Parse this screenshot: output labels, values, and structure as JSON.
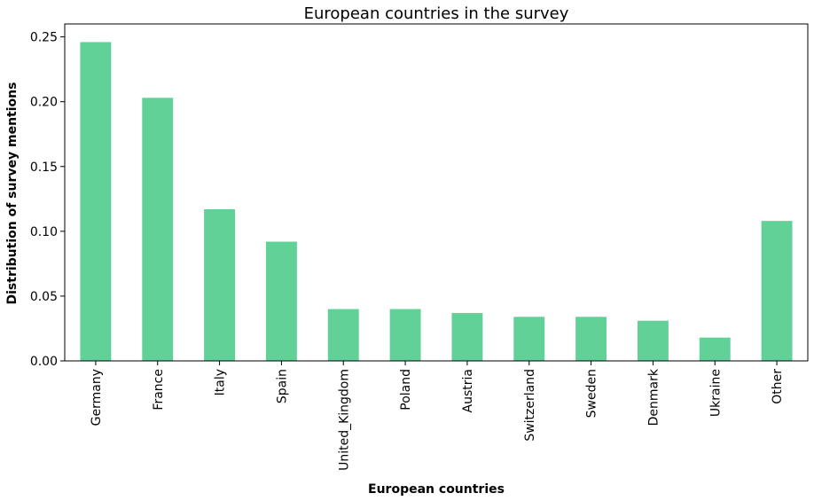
{
  "chart_data": {
    "type": "bar",
    "title": "European countries in the survey",
    "xlabel": "European countries",
    "ylabel": "Distribution of survey mentions",
    "categories": [
      "Germany",
      "France",
      "Italy",
      "Spain",
      "United_Kingdom",
      "Poland",
      "Austria",
      "Switzerland",
      "Sweden",
      "Denmark",
      "Ukraine",
      "Other"
    ],
    "values": [
      0.246,
      0.203,
      0.117,
      0.092,
      0.04,
      0.04,
      0.037,
      0.034,
      0.034,
      0.031,
      0.018,
      0.108
    ],
    "ylim": [
      0,
      0.26
    ],
    "yticks": [
      "0.00",
      "0.05",
      "0.10",
      "0.15",
      "0.20",
      "0.25"
    ],
    "bar_color": "#62d197",
    "grid": false,
    "legend": "none"
  }
}
